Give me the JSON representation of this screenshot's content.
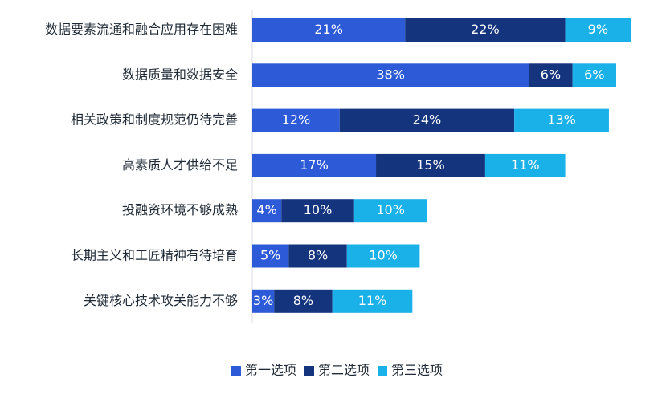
{
  "chart_data": {
    "type": "bar",
    "orientation": "horizontal",
    "stacked": true,
    "title": "",
    "xlabel": "",
    "ylabel": "",
    "xlim": [
      0,
      100
    ],
    "grid": false,
    "legend_position": "bottom",
    "categories": [
      "数据要素流通和融合应用存在困难",
      "数据质量和数据安全",
      "相关政策和制度规范仍待完善",
      "高素质人才供给不足",
      "投融资环境不够成熟",
      "长期主义和工匠精神有待培育",
      "关键核心技术攻关能力不够"
    ],
    "series": [
      {
        "name": "第一选项",
        "color": "#2d5bd8",
        "values": [
          21,
          38,
          12,
          17,
          4,
          5,
          3
        ],
        "labels": [
          "21%",
          "38%",
          "12%",
          "17%",
          "4%",
          "5%",
          "3%"
        ]
      },
      {
        "name": "第二选项",
        "color": "#14347e",
        "values": [
          22,
          6,
          24,
          15,
          10,
          8,
          8
        ],
        "labels": [
          "22%",
          "6%",
          "24%",
          "15%",
          "10%",
          "8%",
          "8%"
        ]
      },
      {
        "name": "第三选项",
        "color": "#1ab0e8",
        "values": [
          9,
          6,
          13,
          11,
          10,
          10,
          11
        ],
        "labels": [
          "9%",
          "6%",
          "13%",
          "11%",
          "10%",
          "10%",
          "11%"
        ]
      }
    ]
  }
}
